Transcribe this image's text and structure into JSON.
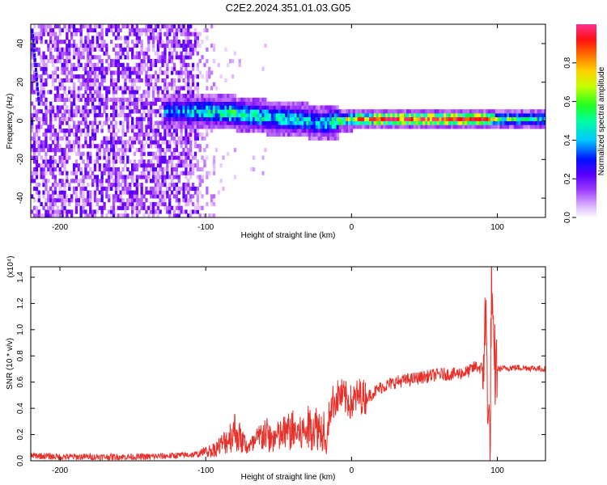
{
  "figure_title": "C2E2.2024.351.01.03.G05",
  "chart_data": [
    {
      "type": "heatmap",
      "xlabel": "Height of straight line (km)",
      "ylabel": "Frequency (Hz)",
      "xlim": [
        -220,
        133
      ],
      "ylim": [
        -50,
        50
      ],
      "x_ticks": [
        -200,
        -100,
        0,
        100
      ],
      "y_ticks": [
        -40,
        -20,
        0,
        20,
        40
      ],
      "colorbar": {
        "label": "Normalized spectral amplitude",
        "range": [
          0,
          1
        ],
        "ticks": [
          "0.0",
          "0.2",
          "0.4",
          "0.6",
          "0.8"
        ],
        "colormap": [
          "#ffffff",
          "#cc88ff",
          "#7a00ff",
          "#0000ff",
          "#00ffff",
          "#00ff40",
          "#ffff00",
          "#ff8000",
          "#ff0000",
          "#ff3080"
        ]
      },
      "ridge": [
        {
          "x": -125,
          "freq": 4,
          "amplitude": 0.4
        },
        {
          "x": -100,
          "freq": 4,
          "amplitude": 0.5
        },
        {
          "x": -80,
          "freq": 3,
          "amplitude": 0.55
        },
        {
          "x": -60,
          "freq": 1,
          "amplitude": 0.5
        },
        {
          "x": -40,
          "freq": 0,
          "amplitude": 0.5
        },
        {
          "x": -20,
          "freq": -2,
          "amplitude": 0.45
        },
        {
          "x": -10,
          "freq": -1,
          "amplitude": 0.6
        },
        {
          "x": 0,
          "freq": 0,
          "amplitude": 0.75
        },
        {
          "x": 20,
          "freq": 0,
          "amplitude": 0.95
        },
        {
          "x": 50,
          "freq": 0,
          "amplitude": 0.95
        },
        {
          "x": 90,
          "freq": 0,
          "amplitude": 0.95
        },
        {
          "x": 100,
          "freq": 0,
          "amplitude": 0.6
        },
        {
          "x": 133,
          "freq": 0,
          "amplitude": 0.5
        }
      ]
    },
    {
      "type": "line",
      "xlabel": "Height of straight line (km)",
      "ylabel": "SNR (10 * v/v)",
      "y_multiplier": "(x10⁴)",
      "xlim": [
        -220,
        133
      ],
      "ylim": [
        0,
        1.48
      ],
      "x_ticks": [
        -200,
        -100,
        0,
        100
      ],
      "y_ticks": [
        "0.0",
        "0.2",
        "0.4",
        "0.6",
        "0.8",
        "1.0",
        "1.2",
        "1.4"
      ],
      "color": "#e8302a",
      "series": [
        {
          "x": [
            -220,
            -200,
            -180,
            -160,
            -140,
            -120,
            -105,
            -100,
            -95,
            -90,
            -85,
            -80,
            -75,
            -70,
            -65,
            -60,
            -55,
            -50,
            -45,
            -40,
            -35,
            -30,
            -25,
            -20,
            -18,
            -17,
            -16,
            -15,
            -12,
            -8,
            -5,
            0,
            5,
            10,
            15,
            20,
            30,
            40,
            50,
            60,
            70,
            80,
            85,
            90,
            92,
            94,
            95,
            96,
            97,
            98,
            100,
            110,
            120,
            133
          ],
          "y": [
            0.04,
            0.03,
            0.03,
            0.03,
            0.03,
            0.04,
            0.05,
            0.08,
            0.1,
            0.14,
            0.2,
            0.28,
            0.18,
            0.12,
            0.18,
            0.26,
            0.2,
            0.22,
            0.26,
            0.28,
            0.24,
            0.3,
            0.32,
            0.28,
            0.36,
            0.08,
            0.24,
            0.4,
            0.46,
            0.5,
            0.48,
            0.44,
            0.5,
            0.48,
            0.52,
            0.56,
            0.6,
            0.62,
            0.64,
            0.66,
            0.66,
            0.68,
            0.72,
            0.7,
            1.1,
            0.3,
            0.1,
            1.45,
            0.8,
            0.72,
            0.7,
            0.71,
            0.71,
            0.7
          ]
        }
      ]
    }
  ]
}
